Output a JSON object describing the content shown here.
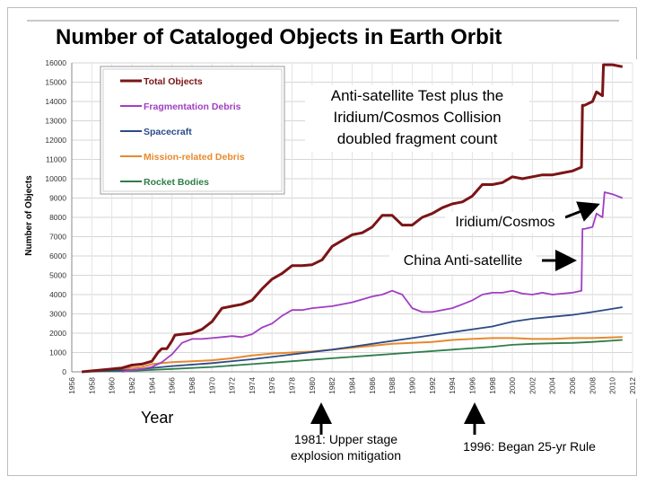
{
  "slide": {
    "title": "Number of Cataloged Objects in Earth Orbit",
    "callout_main": [
      "Anti-satellite Test plus the",
      "Iridium/Cosmos Collision",
      "doubled fragment count"
    ],
    "callout_iridium": "Iridium/Cosmos",
    "callout_china": "China Anti-satellite",
    "x_caption": "Year",
    "note_1981": [
      "1981: Upper stage",
      "explosion mitigation"
    ],
    "note_1996": "1996: Began 25-yr Rule"
  },
  "chart_data": {
    "type": "line",
    "xlim": [
      1956,
      2012
    ],
    "ylim": [
      0,
      16000
    ],
    "x_ticks": [
      1956,
      1958,
      1960,
      1962,
      1964,
      1966,
      1968,
      1970,
      1972,
      1974,
      1976,
      1978,
      1980,
      1982,
      1984,
      1986,
      1988,
      1990,
      1992,
      1994,
      1996,
      1998,
      2000,
      2002,
      2004,
      2006,
      2008,
      2010,
      2012
    ],
    "y_ticks": [
      0,
      1000,
      2000,
      3000,
      4000,
      5000,
      6000,
      7000,
      8000,
      9000,
      10000,
      11000,
      12000,
      13000,
      14000,
      15000,
      16000
    ],
    "ylabel": "Number of Objects",
    "grid": true,
    "legend_position": "top-left",
    "series": [
      {
        "name": "Total Objects",
        "color": "#7b1416",
        "x": [
          1957,
          1961,
          1962,
          1963,
          1964,
          1964.6,
          1965,
          1965.5,
          1966,
          1966.3,
          1967,
          1968,
          1969,
          1970,
          1970.5,
          1971,
          1972,
          1973,
          1974,
          1974.5,
          1975,
          1976,
          1977,
          1978,
          1979,
          1980,
          1981,
          1982,
          1983,
          1984,
          1985,
          1986,
          1987,
          1988,
          1989,
          1990,
          1991,
          1992,
          1993,
          1994,
          1995,
          1996,
          1997,
          1998,
          1999,
          2000,
          2001,
          2002,
          2003,
          2004,
          2005,
          2006,
          2006.9,
          2007,
          2007.2,
          2008,
          2008.4,
          2009,
          2009.1,
          2010,
          2011
        ],
        "y": [
          0,
          200,
          350,
          400,
          550,
          1000,
          1200,
          1200,
          1600,
          1900,
          1950,
          2000,
          2200,
          2600,
          2950,
          3300,
          3400,
          3500,
          3700,
          4000,
          4300,
          4800,
          5100,
          5500,
          5500,
          5550,
          5800,
          6500,
          6800,
          7100,
          7200,
          7500,
          8100,
          8100,
          7600,
          7600,
          8000,
          8200,
          8500,
          8700,
          8800,
          9100,
          9700,
          9700,
          9800,
          10100,
          10000,
          10100,
          10200,
          10200,
          10300,
          10400,
          10600,
          13800,
          13800,
          14000,
          14500,
          14300,
          15900,
          15900,
          15800
        ]
      },
      {
        "name": "Fragmentation Debris",
        "color": "#a13ec2",
        "x": [
          1961,
          1962,
          1963,
          1964,
          1965,
          1966,
          1967,
          1968,
          1969,
          1970,
          1971,
          1972,
          1973,
          1974,
          1975,
          1976,
          1977,
          1978,
          1979,
          1980,
          1981,
          1982,
          1983,
          1984,
          1985,
          1986,
          1987,
          1988,
          1989,
          1990,
          1991,
          1992,
          1993,
          1994,
          1995,
          1996,
          1997,
          1998,
          1999,
          2000,
          2001,
          2002,
          2003,
          2004,
          2005,
          2006,
          2006.9,
          2007,
          2007.2,
          2008,
          2008.4,
          2009,
          2009.2,
          2010,
          2011
        ],
        "y": [
          0,
          100,
          150,
          250,
          500,
          900,
          1500,
          1700,
          1700,
          1750,
          1800,
          1850,
          1800,
          1950,
          2300,
          2500,
          2900,
          3200,
          3200,
          3300,
          3350,
          3400,
          3500,
          3600,
          3750,
          3900,
          4000,
          4200,
          4000,
          3300,
          3100,
          3100,
          3200,
          3300,
          3500,
          3700,
          4000,
          4100,
          4100,
          4200,
          4050,
          4000,
          4100,
          4000,
          4050,
          4100,
          4200,
          7400,
          7400,
          7500,
          8200,
          8000,
          9300,
          9200,
          9000
        ]
      },
      {
        "name": "Spacecraft",
        "color": "#2b4b86",
        "x": [
          1957,
          1962,
          1966,
          1970,
          1974,
          1978,
          1982,
          1986,
          1990,
          1994,
          1998,
          2000,
          2002,
          2004,
          2006,
          2008,
          2011
        ],
        "y": [
          0,
          100,
          300,
          450,
          650,
          900,
          1150,
          1450,
          1750,
          2050,
          2350,
          2600,
          2750,
          2850,
          2950,
          3100,
          3350
        ]
      },
      {
        "name": "Mission-related Debris",
        "color": "#e68a2e",
        "x": [
          1957,
          1962,
          1963,
          1964,
          1966,
          1968,
          1970,
          1972,
          1974,
          1976,
          1978,
          1980,
          1982,
          1984,
          1986,
          1988,
          1990,
          1992,
          1994,
          1996,
          1998,
          2000,
          2002,
          2004,
          2006,
          2008,
          2011
        ],
        "y": [
          0,
          200,
          250,
          400,
          500,
          550,
          600,
          700,
          850,
          950,
          1000,
          1050,
          1150,
          1250,
          1350,
          1450,
          1500,
          1550,
          1650,
          1700,
          1750,
          1750,
          1700,
          1700,
          1750,
          1750,
          1800
        ]
      },
      {
        "name": "Rocket Bodies",
        "color": "#2e7d4a",
        "x": [
          1957,
          1962,
          1966,
          1970,
          1974,
          1978,
          1982,
          1986,
          1990,
          1994,
          1998,
          2000,
          2002,
          2004,
          2006,
          2008,
          2011
        ],
        "y": [
          0,
          50,
          150,
          250,
          400,
          550,
          700,
          850,
          1000,
          1150,
          1300,
          1400,
          1450,
          1480,
          1500,
          1550,
          1650
        ]
      }
    ]
  }
}
